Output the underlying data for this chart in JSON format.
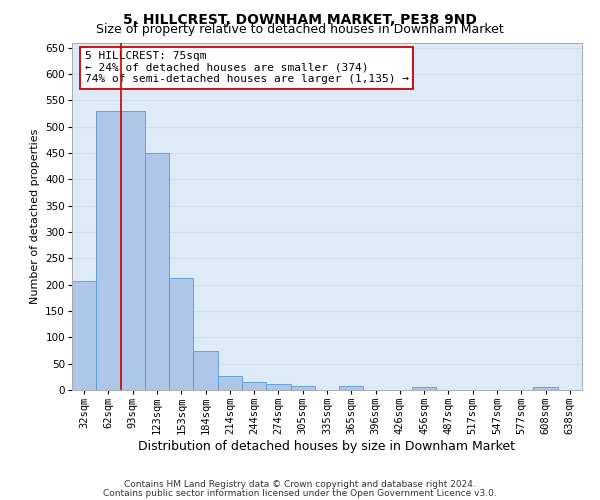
{
  "title1": "5, HILLCREST, DOWNHAM MARKET, PE38 9ND",
  "title2": "Size of property relative to detached houses in Downham Market",
  "xlabel": "Distribution of detached houses by size in Downham Market",
  "ylabel": "Number of detached properties",
  "categories": [
    "32sqm",
    "62sqm",
    "93sqm",
    "123sqm",
    "153sqm",
    "184sqm",
    "214sqm",
    "244sqm",
    "274sqm",
    "305sqm",
    "335sqm",
    "365sqm",
    "396sqm",
    "426sqm",
    "456sqm",
    "487sqm",
    "517sqm",
    "547sqm",
    "577sqm",
    "608sqm",
    "638sqm"
  ],
  "values": [
    207,
    530,
    530,
    450,
    212,
    75,
    26,
    15,
    12,
    8,
    0,
    7,
    0,
    0,
    6,
    0,
    0,
    0,
    0,
    5,
    0
  ],
  "bar_color": "#aec6e8",
  "bar_edge_color": "#5b9bd5",
  "grid_color": "#d0dff0",
  "background_color": "#ddeaf8",
  "vline_x": 1.5,
  "vline_color": "#cc0000",
  "annotation_line1": "5 HILLCREST: 75sqm",
  "annotation_line2": "← 24% of detached houses are smaller (374)",
  "annotation_line3": "74% of semi-detached houses are larger (1,135) →",
  "annotation_box_color": "#ffffff",
  "annotation_box_edge": "#cc0000",
  "ylim": [
    0,
    660
  ],
  "yticks": [
    0,
    50,
    100,
    150,
    200,
    250,
    300,
    350,
    400,
    450,
    500,
    550,
    600,
    650
  ],
  "footer1": "Contains HM Land Registry data © Crown copyright and database right 2024.",
  "footer2": "Contains public sector information licensed under the Open Government Licence v3.0.",
  "title1_fontsize": 10,
  "title2_fontsize": 9,
  "xlabel_fontsize": 9,
  "ylabel_fontsize": 8,
  "tick_fontsize": 7.5,
  "annotation_fontsize": 8,
  "footer_fontsize": 6.5
}
